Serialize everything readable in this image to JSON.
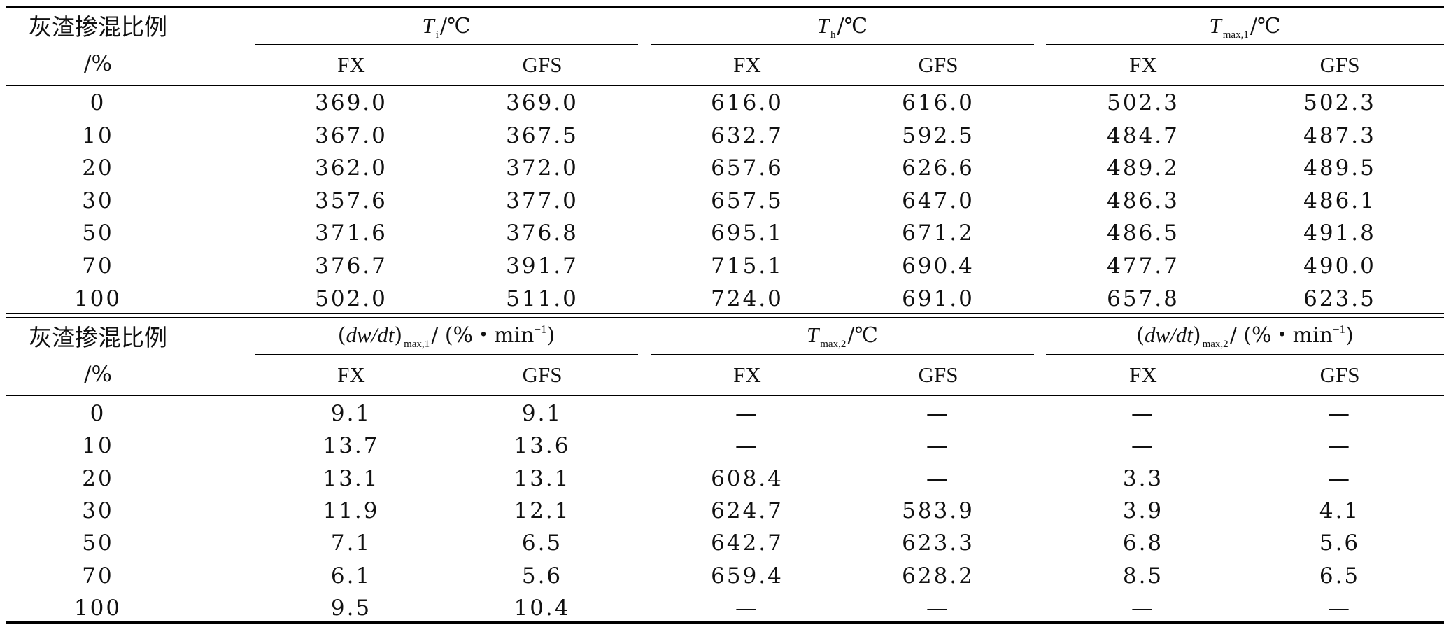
{
  "table1": {
    "row_header_line1": "灰渣掺混比例",
    "row_header_line2": "/%",
    "groups": [
      {
        "symbol": "T",
        "sub": "i",
        "unit": "/℃"
      },
      {
        "symbol": "T",
        "sub": "h",
        "unit": "/℃"
      },
      {
        "symbol": "T",
        "sub": "max,1",
        "unit": "/℃"
      }
    ],
    "subheaders": [
      "FX",
      "GFS",
      "FX",
      "GFS",
      "FX",
      "GFS"
    ],
    "rows": [
      {
        "ratio": "0",
        "cells": [
          "369.0",
          "369.0",
          "616.0",
          "616.0",
          "502.3",
          "502.3"
        ]
      },
      {
        "ratio": "10",
        "cells": [
          "367.0",
          "367.5",
          "632.7",
          "592.5",
          "484.7",
          "487.3"
        ]
      },
      {
        "ratio": "20",
        "cells": [
          "362.0",
          "372.0",
          "657.6",
          "626.6",
          "489.2",
          "489.5"
        ]
      },
      {
        "ratio": "30",
        "cells": [
          "357.6",
          "377.0",
          "657.5",
          "647.0",
          "486.3",
          "486.1"
        ]
      },
      {
        "ratio": "50",
        "cells": [
          "371.6",
          "376.8",
          "695.1",
          "671.2",
          "486.5",
          "491.8"
        ]
      },
      {
        "ratio": "70",
        "cells": [
          "376.7",
          "391.7",
          "715.1",
          "690.4",
          "477.7",
          "490.0"
        ]
      },
      {
        "ratio": "100",
        "cells": [
          "502.0",
          "511.0",
          "724.0",
          "691.0",
          "657.8",
          "623.5"
        ]
      }
    ]
  },
  "table2": {
    "row_header_line1": "灰渣掺混比例",
    "row_header_line2": "/%",
    "groups": [
      {
        "open": "(",
        "symbol": "dw/dt",
        "close": ")",
        "sub": "max,1",
        "unit_pre": "/ (%・min",
        "sup": "−1",
        "unit_post": ")"
      },
      {
        "symbol": "T",
        "sub": "max,2",
        "unit": "/℃"
      },
      {
        "open": "(",
        "symbol": "dw/dt",
        "close": ")",
        "sub": "max,2",
        "unit_pre": "/ (%・min",
        "sup": "−1",
        "unit_post": ")"
      }
    ],
    "subheaders": [
      "FX",
      "GFS",
      "FX",
      "GFS",
      "FX",
      "GFS"
    ],
    "rows": [
      {
        "ratio": "0",
        "cells": [
          "9.1",
          "9.1",
          "—",
          "—",
          "—",
          "—"
        ]
      },
      {
        "ratio": "10",
        "cells": [
          "13.7",
          "13.6",
          "—",
          "—",
          "—",
          "—"
        ]
      },
      {
        "ratio": "20",
        "cells": [
          "13.1",
          "13.1",
          "608.4",
          "—",
          "3.3",
          "—"
        ]
      },
      {
        "ratio": "30",
        "cells": [
          "11.9",
          "12.1",
          "624.7",
          "583.9",
          "3.9",
          "4.1"
        ]
      },
      {
        "ratio": "50",
        "cells": [
          "7.1",
          "6.5",
          "642.7",
          "623.3",
          "6.8",
          "5.6"
        ]
      },
      {
        "ratio": "70",
        "cells": [
          "6.1",
          "5.6",
          "659.4",
          "628.2",
          "8.5",
          "6.5"
        ]
      },
      {
        "ratio": "100",
        "cells": [
          "9.5",
          "10.4",
          "—",
          "—",
          "—",
          "—"
        ]
      }
    ]
  }
}
